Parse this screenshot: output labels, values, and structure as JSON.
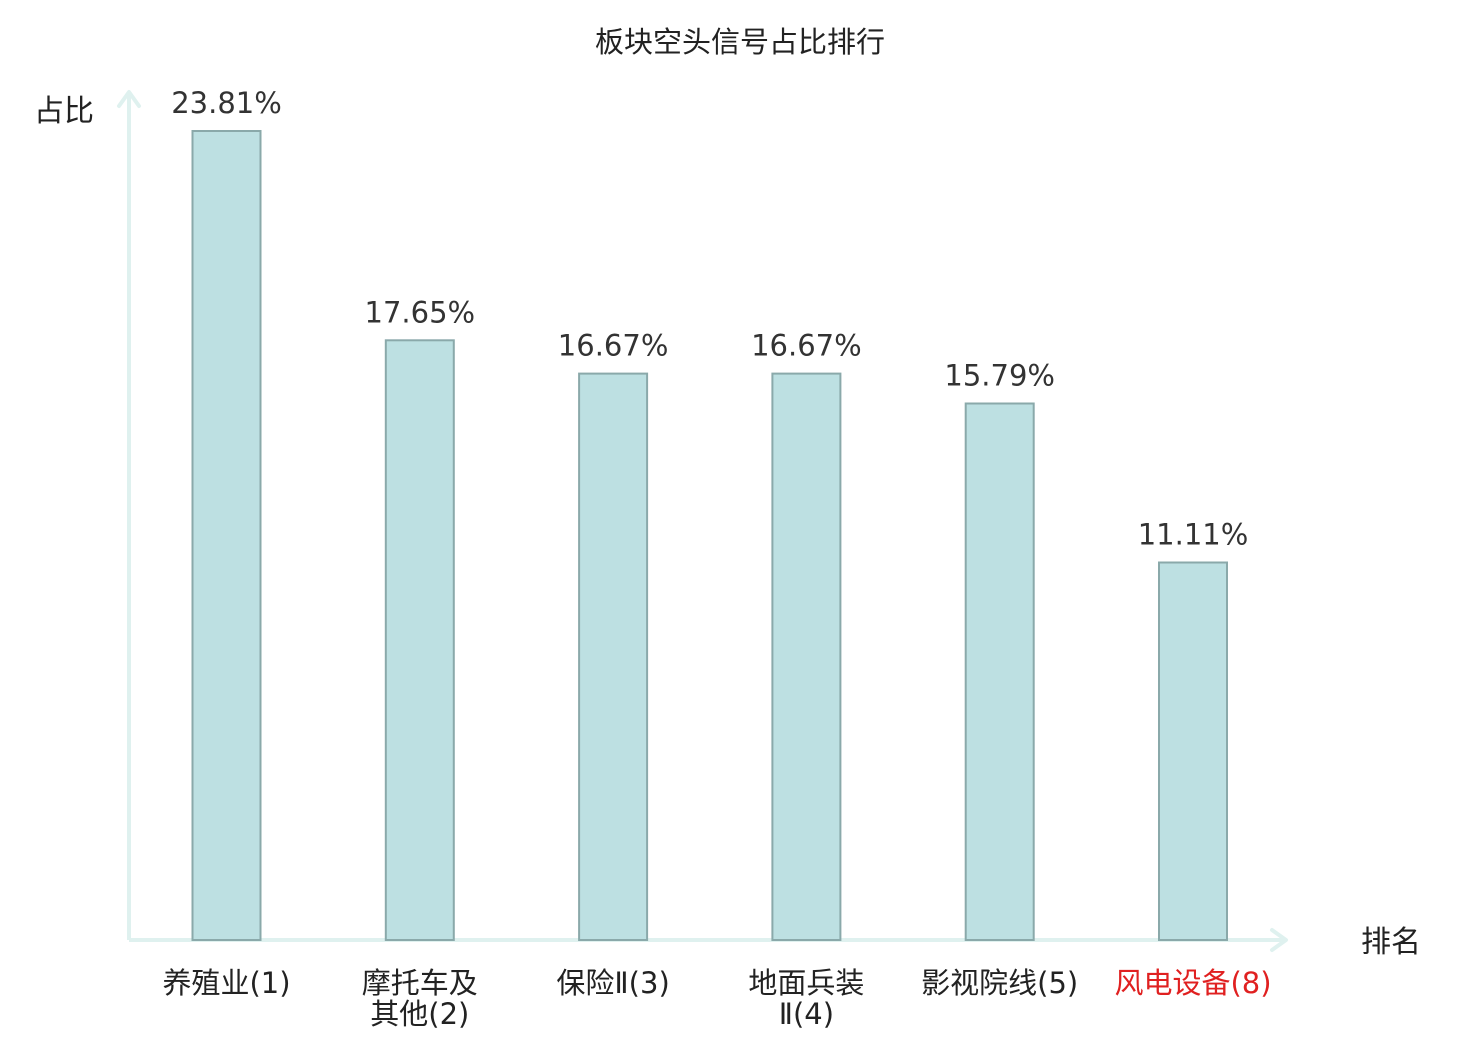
{
  "chart_data": {
    "type": "bar",
    "title": "板块空头信号占比排行",
    "ylabel": "占比",
    "xlabel": "排名",
    "ylim": [
      0,
      25
    ],
    "grid": false,
    "categories": [
      [
        "养殖业(1)"
      ],
      [
        "摩托车及",
        "其他(2)"
      ],
      [
        "保险Ⅱ(3)"
      ],
      [
        "地面兵装",
        "Ⅱ(4)"
      ],
      [
        "影视院线(5)"
      ],
      [
        "风电设备(8)"
      ]
    ],
    "values": [
      23.81,
      17.65,
      16.67,
      16.67,
      15.79,
      11.11
    ],
    "value_labels": [
      "23.81%",
      "17.65%",
      "16.67%",
      "16.67%",
      "15.79%",
      "11.11%"
    ],
    "highlight_index": 5
  },
  "colors": {
    "bar_fill": "#bde0e2",
    "bar_stroke": "#8aa9aa",
    "axis": "#dff1ef",
    "text": "#222222",
    "value_text": "#333333",
    "highlight": "#e02020"
  }
}
